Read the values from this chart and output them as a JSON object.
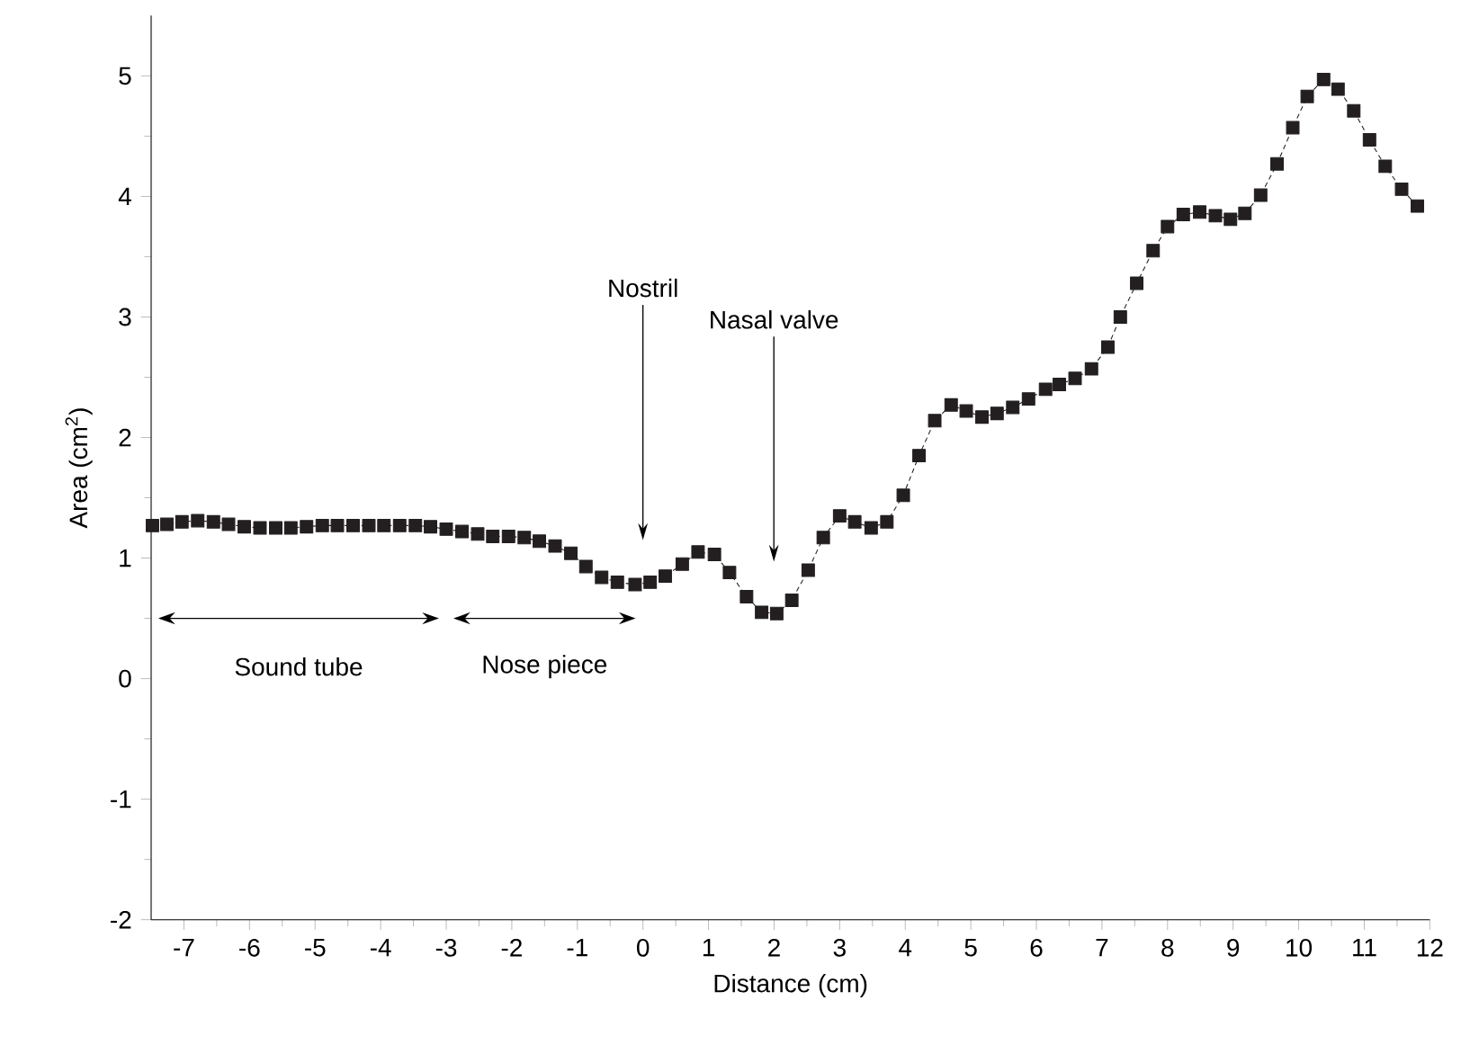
{
  "chart_data": {
    "type": "line",
    "xlabel": "Distance (cm)",
    "ylabel": "Area (cm$^{2}$)",
    "series": [
      {
        "color": "#231f20",
        "marker": "square",
        "line_style": "dashed",
        "x": [
          -7.48,
          -7.26,
          -7.03,
          -6.79,
          -6.55,
          -6.32,
          -6.08,
          -5.84,
          -5.6,
          -5.37,
          -5.13,
          -4.89,
          -4.66,
          -4.42,
          -4.18,
          -3.95,
          -3.71,
          -3.47,
          -3.24,
          -3.0,
          -2.76,
          -2.52,
          -2.29,
          -2.05,
          -1.81,
          -1.58,
          -1.34,
          -1.1,
          -0.87,
          -0.63,
          -0.39,
          -0.12,
          0.11,
          0.34,
          0.6,
          0.84,
          1.09,
          1.32,
          1.58,
          1.81,
          2.04,
          2.27,
          2.52,
          2.75,
          3.0,
          3.23,
          3.48,
          3.72,
          3.97,
          4.21,
          4.45,
          4.7,
          4.93,
          5.17,
          5.4,
          5.64,
          5.88,
          6.14,
          6.35,
          6.59,
          6.84,
          7.09,
          7.28,
          7.53,
          7.78,
          8.0,
          8.24,
          8.49,
          8.73,
          8.96,
          9.18,
          9.42,
          9.67,
          9.91,
          10.13,
          10.38,
          10.6,
          10.84,
          11.08,
          11.32,
          11.57,
          11.81
        ],
        "values": [
          1.27,
          1.28,
          1.3,
          1.31,
          1.3,
          1.28,
          1.26,
          1.25,
          1.25,
          1.25,
          1.26,
          1.27,
          1.27,
          1.27,
          1.27,
          1.27,
          1.27,
          1.27,
          1.26,
          1.24,
          1.22,
          1.2,
          1.18,
          1.18,
          1.17,
          1.14,
          1.1,
          1.04,
          0.93,
          0.84,
          0.8,
          0.78,
          0.8,
          0.85,
          0.95,
          1.05,
          1.03,
          0.88,
          0.68,
          0.55,
          0.54,
          0.65,
          0.9,
          1.17,
          1.35,
          1.3,
          1.25,
          1.3,
          1.52,
          1.85,
          2.14,
          2.27,
          2.22,
          2.17,
          2.2,
          2.25,
          2.32,
          2.4,
          2.44,
          2.49,
          2.57,
          2.75,
          3.0,
          3.28,
          3.55,
          3.75,
          3.85,
          3.87,
          3.84,
          3.81,
          3.86,
          4.01,
          4.27,
          4.57,
          4.83,
          4.97,
          4.89,
          4.71,
          4.47,
          4.25,
          4.06,
          3.92
        ]
      }
    ],
    "xlim": [
      -7.5,
      12
    ],
    "ylim": [
      -2,
      5.5
    ],
    "xticks": [
      -7,
      -6,
      -5,
      -4,
      -3,
      -2,
      -1,
      0,
      1,
      2,
      3,
      4,
      5,
      6,
      7,
      8,
      9,
      10,
      11,
      12
    ],
    "yticks": [
      -2,
      -1,
      0,
      1,
      2,
      3,
      4,
      5
    ],
    "annotations": [
      "Nostril",
      "Nasal valve",
      "Sound tube",
      "Nose piece"
    ]
  }
}
